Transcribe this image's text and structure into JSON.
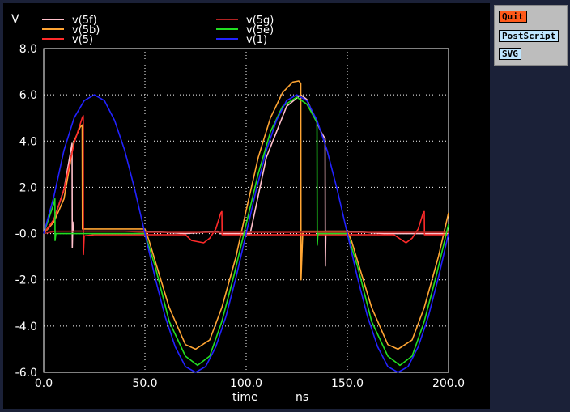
{
  "panel": {
    "quit_label": "Quit",
    "postscript_label": "PostScript",
    "svg_label": "SVG"
  },
  "chart_data": {
    "type": "line",
    "title": "",
    "ylabel": "V",
    "xlabel": "time",
    "xunit": "ns",
    "xlim": [
      0,
      200
    ],
    "ylim": [
      -6,
      8
    ],
    "grid": true,
    "legend_position": "top",
    "xticks": [
      "0.0",
      "50.0",
      "100.0",
      "150.0",
      "200.0"
    ],
    "yticks": [
      "-6.0",
      "-4.0",
      "-2.0",
      "-0.0",
      "2.0",
      "4.0",
      "6.0",
      "8.0"
    ],
    "colors": {
      "axes": "#ffffff",
      "grid": "#ffffff",
      "text": "#ffffff"
    },
    "series": [
      {
        "name": "v(5f)",
        "color": "#ffc0cb",
        "points": [
          [
            0,
            0
          ],
          [
            5,
            0.6
          ],
          [
            10,
            1.9
          ],
          [
            14,
            3.9
          ],
          [
            14.1,
            -0.6
          ],
          [
            14.4,
            0.5
          ],
          [
            14.6,
            0.1
          ],
          [
            40,
            0.1
          ],
          [
            50.5,
            0.1
          ],
          [
            70,
            0
          ],
          [
            86,
            0.1
          ],
          [
            87,
            0
          ],
          [
            102,
            0
          ],
          [
            110,
            3.3
          ],
          [
            120,
            5.5
          ],
          [
            127,
            6.0
          ],
          [
            130,
            5.8
          ],
          [
            137,
            4.4
          ],
          [
            139,
            4.1
          ],
          [
            139.1,
            -1.4
          ],
          [
            139.4,
            0.1
          ],
          [
            150.5,
            0.1
          ],
          [
            168,
            0
          ],
          [
            186,
            0
          ],
          [
            200,
            0
          ]
        ]
      },
      {
        "name": "v(5b)",
        "color": "#ffa533",
        "points": [
          [
            0,
            0
          ],
          [
            5,
            0.5
          ],
          [
            10,
            1.5
          ],
          [
            15,
            4.0
          ],
          [
            18,
            4.6
          ],
          [
            19,
            4.7
          ],
          [
            19.1,
            0.2
          ],
          [
            20,
            0.2
          ],
          [
            50,
            0.2
          ],
          [
            52,
            -0.3
          ],
          [
            62,
            -3.2
          ],
          [
            70,
            -4.8
          ],
          [
            75,
            -5.0
          ],
          [
            82,
            -4.6
          ],
          [
            88,
            -3.2
          ],
          [
            95,
            -1.0
          ],
          [
            100,
            1.0
          ],
          [
            106,
            3.3
          ],
          [
            112,
            5.0
          ],
          [
            118,
            6.1
          ],
          [
            123,
            6.55
          ],
          [
            126,
            6.6
          ],
          [
            127,
            6.5
          ],
          [
            127.1,
            -2.0
          ],
          [
            128,
            0.1
          ],
          [
            150,
            0.1
          ],
          [
            152,
            -0.3
          ],
          [
            162,
            -3.2
          ],
          [
            170,
            -4.8
          ],
          [
            175,
            -5.0
          ],
          [
            182,
            -4.6
          ],
          [
            188,
            -3.2
          ],
          [
            195,
            -1.0
          ],
          [
            200,
            0.9
          ]
        ]
      },
      {
        "name": "v(5)",
        "color": "#ff2a2a",
        "points": [
          [
            0,
            0
          ],
          [
            5,
            0.6
          ],
          [
            10,
            1.9
          ],
          [
            15,
            3.9
          ],
          [
            19,
            5.0
          ],
          [
            19.5,
            5.1
          ],
          [
            19.6,
            -0.9
          ],
          [
            20,
            -0.1
          ],
          [
            25,
            -0.05
          ],
          [
            60,
            -0.05
          ],
          [
            70,
            -0.05
          ],
          [
            73,
            -0.3
          ],
          [
            79,
            -0.4
          ],
          [
            82,
            -0.2
          ],
          [
            85,
            0.2
          ],
          [
            87.5,
            0.9
          ],
          [
            88,
            0.95
          ],
          [
            88.1,
            -0.05
          ],
          [
            100,
            -0.05
          ],
          [
            173,
            -0.05
          ],
          [
            179,
            -0.4
          ],
          [
            182,
            -0.2
          ],
          [
            185,
            0.2
          ],
          [
            187.5,
            0.9
          ],
          [
            188,
            0.95
          ],
          [
            188.1,
            -0.05
          ],
          [
            200,
            -0.05
          ]
        ]
      },
      {
        "name": "v(5g)",
        "color": "#b22222",
        "points": [
          [
            0,
            0
          ],
          [
            6,
            0.1
          ],
          [
            40,
            0.1
          ],
          [
            50,
            0.05
          ],
          [
            100,
            0.05
          ],
          [
            200,
            0.05
          ]
        ]
      },
      {
        "name": "v(5e)",
        "color": "#22dd22",
        "points": [
          [
            0,
            0
          ],
          [
            5,
            1.3
          ],
          [
            5.5,
            1.5
          ],
          [
            5.6,
            -0.3
          ],
          [
            6,
            0
          ],
          [
            45,
            0
          ],
          [
            50,
            0
          ],
          [
            55,
            -1.4
          ],
          [
            62,
            -3.8
          ],
          [
            70,
            -5.3
          ],
          [
            76,
            -5.7
          ],
          [
            82,
            -5.3
          ],
          [
            88,
            -3.8
          ],
          [
            94,
            -1.8
          ],
          [
            100,
            0.4
          ],
          [
            106,
            2.6
          ],
          [
            112,
            4.4
          ],
          [
            118,
            5.5
          ],
          [
            125,
            5.9
          ],
          [
            130,
            5.6
          ],
          [
            135,
            4.8
          ],
          [
            135.1,
            -0.5
          ],
          [
            135.5,
            0
          ],
          [
            150,
            0
          ],
          [
            155,
            -1.4
          ],
          [
            162,
            -3.8
          ],
          [
            170,
            -5.3
          ],
          [
            176,
            -5.7
          ],
          [
            182,
            -5.3
          ],
          [
            188,
            -3.8
          ],
          [
            194,
            -1.8
          ],
          [
            200,
            0.4
          ]
        ]
      },
      {
        "name": "v(1)",
        "color": "#2222ff",
        "points": [
          [
            0,
            0
          ],
          [
            5,
            1.6
          ],
          [
            10,
            3.6
          ],
          [
            15,
            5.0
          ],
          [
            20,
            5.75
          ],
          [
            25,
            6.0
          ],
          [
            30,
            5.75
          ],
          [
            35,
            4.9
          ],
          [
            40,
            3.6
          ],
          [
            45,
            1.9
          ],
          [
            50,
            0
          ],
          [
            55,
            -1.9
          ],
          [
            60,
            -3.6
          ],
          [
            65,
            -4.9
          ],
          [
            70,
            -5.75
          ],
          [
            75,
            -6.0
          ],
          [
            80,
            -5.75
          ],
          [
            85,
            -4.9
          ],
          [
            90,
            -3.6
          ],
          [
            95,
            -1.9
          ],
          [
            100,
            0
          ],
          [
            105,
            1.9
          ],
          [
            110,
            3.6
          ],
          [
            115,
            4.9
          ],
          [
            120,
            5.75
          ],
          [
            125,
            6.0
          ],
          [
            130,
            5.75
          ],
          [
            135,
            4.9
          ],
          [
            140,
            3.6
          ],
          [
            145,
            1.9
          ],
          [
            150,
            0
          ],
          [
            155,
            -1.9
          ],
          [
            160,
            -3.6
          ],
          [
            165,
            -4.9
          ],
          [
            170,
            -5.75
          ],
          [
            175,
            -6.0
          ],
          [
            180,
            -5.75
          ],
          [
            185,
            -4.9
          ],
          [
            190,
            -3.6
          ],
          [
            195,
            -1.9
          ],
          [
            200,
            0
          ]
        ]
      }
    ]
  }
}
